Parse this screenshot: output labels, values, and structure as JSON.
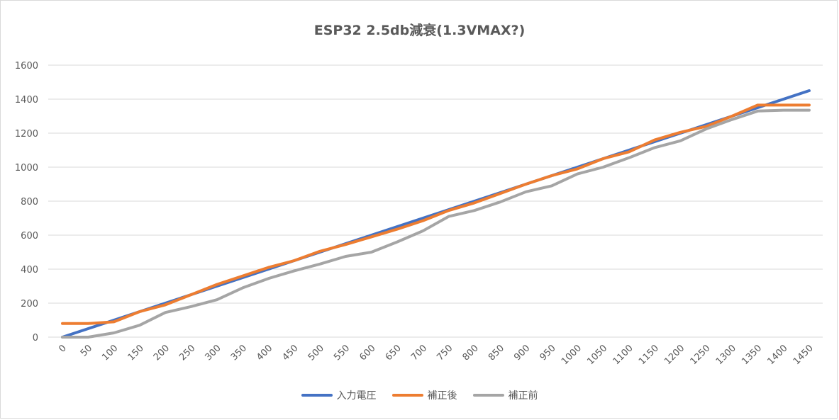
{
  "chart_data": {
    "type": "line",
    "title": "ESP32 2.5db減衰(1.3VMAX?)",
    "xlabel": "",
    "ylabel": "",
    "ylim": [
      0,
      1600
    ],
    "yticks": [
      "0",
      "200",
      "400",
      "600",
      "800",
      "1000",
      "1200",
      "1400",
      "1600"
    ],
    "categories": [
      "0",
      "50",
      "100",
      "150",
      "200",
      "250",
      "300",
      "350",
      "400",
      "450",
      "500",
      "550",
      "600",
      "650",
      "700",
      "750",
      "800",
      "850",
      "900",
      "950",
      "1000",
      "1050",
      "1100",
      "1150",
      "1200",
      "1250",
      "1300",
      "1350",
      "1400",
      "1450"
    ],
    "grid": true,
    "legend_position": "bottom",
    "series": [
      {
        "name": "入力電圧",
        "color": "#4472c4",
        "values": [
          0,
          50,
          100,
          150,
          200,
          250,
          300,
          350,
          400,
          450,
          500,
          550,
          600,
          650,
          700,
          750,
          800,
          850,
          900,
          950,
          1000,
          1050,
          1100,
          1150,
          1200,
          1250,
          1300,
          1350,
          1400,
          1450
        ]
      },
      {
        "name": "補正後",
        "color": "#ed7d31",
        "values": [
          80,
          80,
          90,
          150,
          190,
          250,
          310,
          360,
          410,
          450,
          505,
          545,
          590,
          635,
          685,
          745,
          790,
          845,
          900,
          950,
          990,
          1050,
          1090,
          1160,
          1205,
          1240,
          1300,
          1365,
          1365,
          1365
        ]
      },
      {
        "name": "補正前",
        "color": "#a5a5a5",
        "values": [
          0,
          0,
          25,
          70,
          145,
          180,
          220,
          290,
          345,
          390,
          430,
          475,
          500,
          560,
          625,
          710,
          745,
          795,
          855,
          890,
          960,
          1000,
          1055,
          1115,
          1155,
          1225,
          1280,
          1330,
          1335,
          1335
        ]
      }
    ]
  }
}
